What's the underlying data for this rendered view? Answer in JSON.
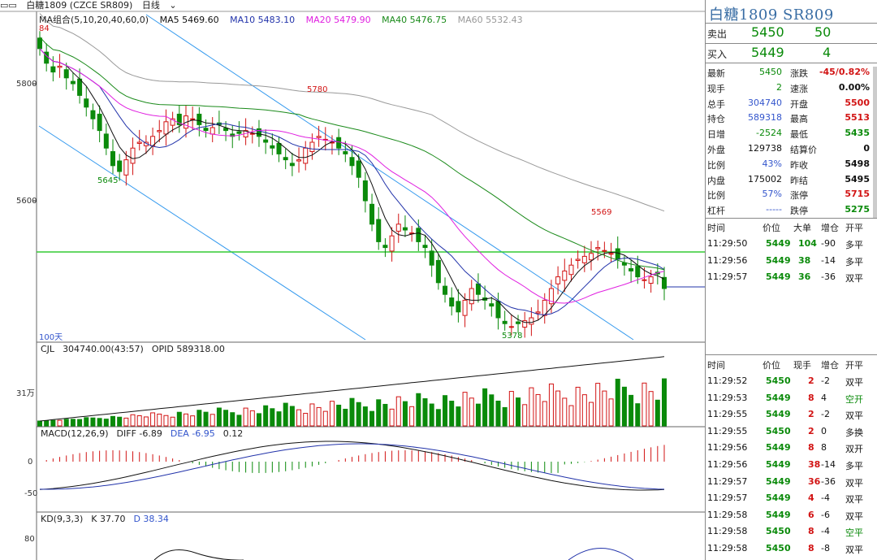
{
  "topbar": {
    "instrument": "白糖1809 (CZCE SR809)",
    "period": "日线"
  },
  "ma_legend": {
    "group": "MA组合(5,10,20,40,60,0)",
    "ma5": "MA5 5469.60",
    "ma10": "MA10 5483.10",
    "ma20": "MA20 5479.90",
    "ma40": "MA40 5476.75",
    "ma60": "MA60 5532.43"
  },
  "colors": {
    "ma5": "#111111",
    "ma10": "#2233aa",
    "ma20": "#e020e0",
    "ma40": "#1a8a1a",
    "ma60": "#999999",
    "up": "#d21414",
    "down": "#0a8a0a",
    "channel": "#3399ee",
    "support": "#33cc33"
  },
  "price_axis": {
    "ticks": [
      "5800",
      "5600"
    ],
    "marks": [
      "84",
      "5780",
      "5645",
      "5569",
      "5378"
    ],
    "days_label": "100天"
  },
  "vol_panel": {
    "title": "CJL",
    "cjl": "304740.00(43:57)",
    "opi": "OPID 589318.00",
    "tick": "31万"
  },
  "macd_panel": {
    "title": "MACD(12,26,9)",
    "diff": "DIFF -6.89",
    "dea": "DEA -6.95",
    "macd": "0.12",
    "ticks": [
      "0",
      "-50"
    ]
  },
  "kd_panel": {
    "title": "KD(9,3,3)",
    "k": "K 37.70",
    "d": "D 38.34",
    "tick": "80"
  },
  "quote": {
    "title": "白糖1809  SR809",
    "sell_label": "卖出",
    "sell_price": "5450",
    "sell_vol": "50",
    "buy_label": "买入",
    "buy_price": "5449",
    "buy_vol": "4",
    "stats": [
      [
        "最新",
        "5450",
        "涨跌",
        "-45/0.82%"
      ],
      [
        "现手",
        "2",
        "速涨",
        "0.00%"
      ],
      [
        "总手",
        "304740",
        "开盘",
        "5500"
      ],
      [
        "持仓",
        "589318",
        "最高",
        "5513"
      ],
      [
        "日增",
        "-2524",
        "最低",
        "5435"
      ],
      [
        "外盘",
        "129738",
        "结算价",
        "0"
      ],
      [
        "比例",
        "43%",
        "昨收",
        "5498"
      ],
      [
        "内盘",
        "175002",
        "昨结",
        "5495"
      ],
      [
        "比例",
        "57%",
        "涨停",
        "5715"
      ],
      [
        "杠杆",
        "-----",
        "跌停",
        "5275"
      ]
    ]
  },
  "big_orders": {
    "headers": [
      "时间",
      "价位",
      "大单",
      "增仓",
      "开平"
    ],
    "rows": [
      [
        "11:29:50",
        "5449",
        "104",
        "-90",
        "多平"
      ],
      [
        "11:29:56",
        "5449",
        "38",
        "-14",
        "多平"
      ],
      [
        "11:29:57",
        "5449",
        "36",
        "-36",
        "双平"
      ]
    ]
  },
  "ticks": {
    "headers": [
      "时间",
      "价位",
      "现手",
      "增仓",
      "开平"
    ],
    "rows": [
      [
        "11:29:52",
        "5450",
        "2",
        "-2",
        "双平"
      ],
      [
        "11:29:53",
        "5449",
        "8",
        "4",
        "空开"
      ],
      [
        "11:29:55",
        "5449",
        "2",
        "-2",
        "双平"
      ],
      [
        "11:29:55",
        "5450",
        "2",
        "0",
        "多换"
      ],
      [
        "11:29:56",
        "5449",
        "8",
        "8",
        "双开"
      ],
      [
        "11:29:56",
        "5449",
        "38",
        "-14",
        "多平"
      ],
      [
        "11:29:57",
        "5449",
        "36",
        "-36",
        "双平"
      ],
      [
        "11:29:57",
        "5449",
        "4",
        "-4",
        "双平"
      ],
      [
        "11:29:58",
        "5449",
        "6",
        "-6",
        "双平"
      ],
      [
        "11:29:58",
        "5450",
        "8",
        "-4",
        "空平"
      ],
      [
        "11:29:58",
        "5450",
        "8",
        "-8",
        "双平"
      ]
    ]
  }
}
